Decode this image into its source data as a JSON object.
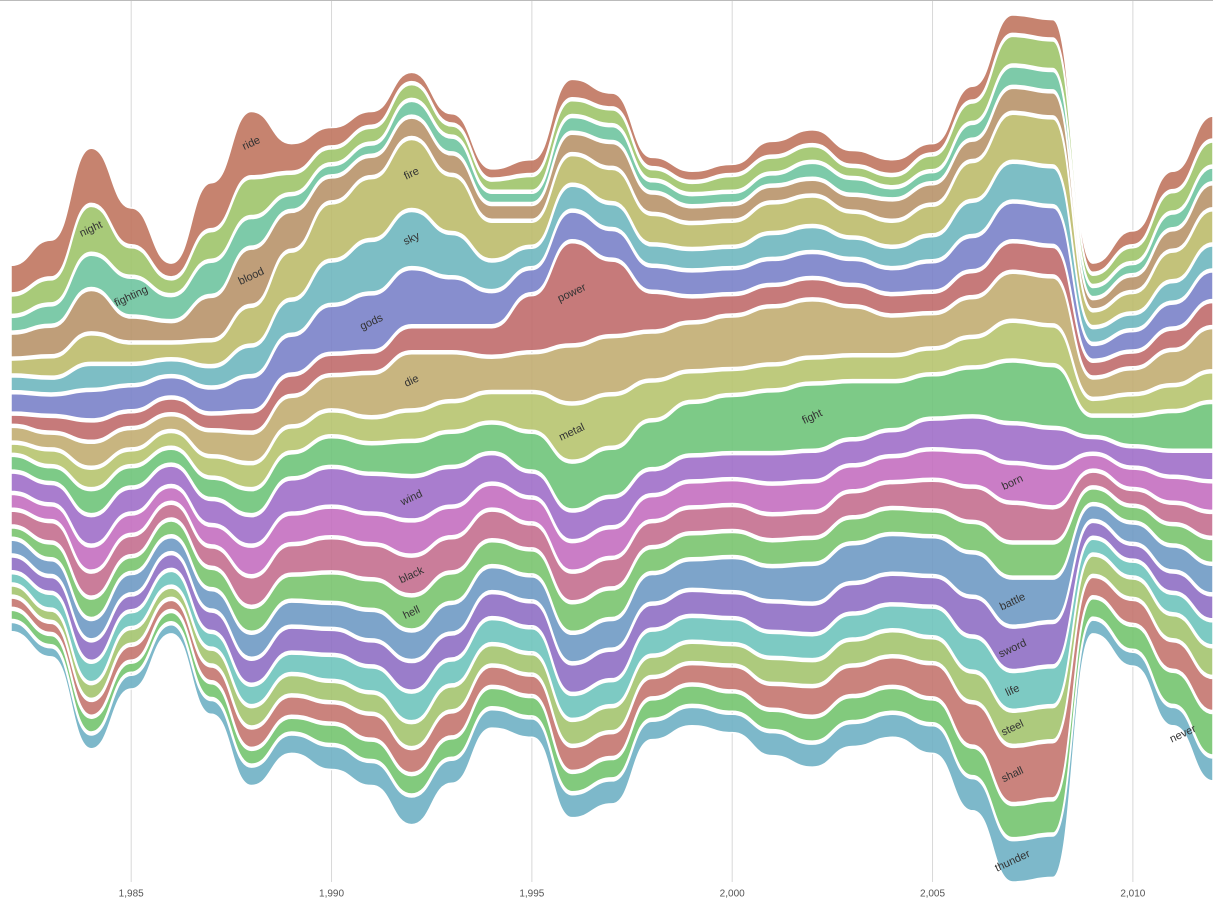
{
  "chart_data": {
    "type": "streamgraph",
    "x": [
      1982,
      1983,
      1984,
      1985,
      1986,
      1987,
      1988,
      1989,
      1990,
      1991,
      1992,
      1993,
      1994,
      1995,
      1996,
      1997,
      1998,
      1999,
      2000,
      2001,
      2002,
      2003,
      2004,
      2005,
      2006,
      2007,
      2008,
      2009,
      2010,
      2011,
      2012
    ],
    "xlim": [
      1982,
      2012
    ],
    "xticks": [
      {
        "value": 1985,
        "label": "1,985"
      },
      {
        "value": 1990,
        "label": "1,990"
      },
      {
        "value": 1995,
        "label": "1,995"
      },
      {
        "value": 2000,
        "label": "2,000"
      },
      {
        "value": 2005,
        "label": "2,005"
      },
      {
        "value": 2010,
        "label": "2,010"
      }
    ],
    "grid": true,
    "series": [
      {
        "name": "ride",
        "color": "#c0765f",
        "values": [
          6,
          8,
          12,
          8,
          3,
          10,
          14,
          6,
          4,
          3,
          2,
          2,
          2,
          3,
          4,
          3,
          2,
          2,
          2,
          3,
          3,
          3,
          3,
          2,
          3,
          4,
          4,
          2,
          3,
          4,
          5
        ]
      },
      {
        "name": "night",
        "color": "#9ec46a",
        "values": [
          4,
          5,
          10,
          6,
          3,
          6,
          8,
          4,
          3,
          3,
          3,
          2,
          2,
          3,
          3,
          3,
          2,
          2,
          3,
          3,
          3,
          2,
          2,
          3,
          4,
          6,
          6,
          2,
          3,
          4,
          5
        ]
      },
      {
        "name": "fighting",
        "color": "#6fc4a0",
        "values": [
          3,
          4,
          7,
          8,
          5,
          7,
          6,
          3,
          2,
          2,
          3,
          3,
          2,
          2,
          3,
          3,
          2,
          2,
          2,
          2,
          3,
          3,
          2,
          2,
          3,
          4,
          4,
          2,
          2,
          3,
          3
        ]
      },
      {
        "name": "blood",
        "color": "#b8936a",
        "values": [
          5,
          6,
          9,
          5,
          4,
          9,
          12,
          8,
          5,
          4,
          4,
          4,
          3,
          3,
          4,
          5,
          4,
          3,
          3,
          3,
          3,
          3,
          4,
          4,
          4,
          5,
          5,
          2,
          3,
          4,
          5
        ]
      },
      {
        "name": "fire",
        "color": "#bdbb6c",
        "values": [
          3,
          4,
          6,
          4,
          3,
          5,
          8,
          10,
          12,
          13,
          15,
          12,
          8,
          5,
          6,
          7,
          6,
          5,
          5,
          6,
          6,
          5,
          5,
          6,
          8,
          10,
          10,
          3,
          4,
          6,
          7
        ]
      },
      {
        "name": "sky",
        "color": "#6fb7bf",
        "values": [
          3,
          3,
          5,
          4,
          3,
          4,
          6,
          7,
          9,
          11,
          12,
          9,
          6,
          4,
          5,
          5,
          4,
          4,
          4,
          5,
          5,
          4,
          4,
          5,
          7,
          8,
          8,
          3,
          3,
          4,
          5
        ]
      },
      {
        "name": "gods",
        "color": "#7a82c9",
        "values": [
          4,
          4,
          6,
          5,
          4,
          5,
          7,
          8,
          10,
          12,
          12,
          10,
          7,
          5,
          6,
          6,
          5,
          5,
          5,
          5,
          5,
          5,
          5,
          6,
          7,
          8,
          8,
          3,
          4,
          5,
          6
        ]
      },
      {
        "name": "power",
        "color": "#c06b6b",
        "values": [
          2,
          3,
          4,
          3,
          3,
          3,
          4,
          4,
          4,
          4,
          5,
          5,
          6,
          12,
          22,
          16,
          8,
          5,
          4,
          4,
          4,
          4,
          4,
          4,
          5,
          6,
          6,
          3,
          3,
          4,
          5
        ]
      },
      {
        "name": "die",
        "color": "#c2ad72",
        "values": [
          3,
          3,
          5,
          4,
          3,
          5,
          6,
          6,
          7,
          9,
          12,
          10,
          7,
          8,
          12,
          12,
          10,
          10,
          11,
          12,
          12,
          10,
          8,
          7,
          8,
          10,
          10,
          4,
          5,
          7,
          9
        ]
      },
      {
        "name": "metal",
        "color": "#b7c46f",
        "values": [
          2,
          3,
          4,
          3,
          3,
          4,
          5,
          5,
          5,
          5,
          6,
          6,
          6,
          8,
          12,
          11,
          8,
          6,
          5,
          5,
          5,
          5,
          5,
          5,
          6,
          8,
          8,
          3,
          4,
          5,
          6
        ]
      },
      {
        "name": "fight",
        "color": "#6fc47a",
        "values": [
          3,
          3,
          5,
          4,
          3,
          4,
          5,
          5,
          6,
          6,
          7,
          7,
          6,
          8,
          10,
          10,
          10,
          11,
          12,
          13,
          14,
          12,
          10,
          9,
          10,
          13,
          13,
          4,
          6,
          8,
          10
        ]
      },
      {
        "name": "wind",
        "color": "#a06fc9",
        "values": [
          4,
          4,
          6,
          5,
          4,
          5,
          6,
          7,
          8,
          8,
          9,
          8,
          6,
          5,
          6,
          6,
          5,
          5,
          5,
          6,
          6,
          5,
          5,
          6,
          7,
          8,
          8,
          3,
          4,
          5,
          6
        ]
      },
      {
        "name": "born",
        "color": "#c46fc0",
        "values": [
          3,
          3,
          5,
          4,
          3,
          4,
          6,
          6,
          6,
          6,
          7,
          6,
          5,
          5,
          6,
          6,
          5,
          5,
          5,
          6,
          6,
          5,
          5,
          6,
          7,
          8,
          8,
          3,
          4,
          5,
          6
        ]
      },
      {
        "name": "black",
        "color": "#c46f8f",
        "values": [
          3,
          4,
          5,
          4,
          3,
          4,
          6,
          6,
          7,
          7,
          8,
          7,
          6,
          5,
          6,
          6,
          5,
          5,
          5,
          5,
          5,
          5,
          5,
          6,
          7,
          8,
          7,
          3,
          3,
          4,
          5
        ]
      },
      {
        "name": "hell",
        "color": "#7ac46f",
        "values": [
          2,
          3,
          4,
          3,
          3,
          4,
          5,
          5,
          6,
          6,
          7,
          6,
          5,
          5,
          6,
          6,
          5,
          5,
          5,
          5,
          5,
          5,
          5,
          5,
          6,
          7,
          7,
          3,
          3,
          4,
          5
        ]
      },
      {
        "name": "battle",
        "color": "#6f9ac4",
        "values": [
          3,
          3,
          4,
          4,
          3,
          4,
          5,
          5,
          5,
          6,
          6,
          6,
          5,
          5,
          6,
          6,
          6,
          6,
          7,
          7,
          8,
          8,
          8,
          8,
          9,
          10,
          9,
          3,
          4,
          5,
          6
        ]
      },
      {
        "name": "sword",
        "color": "#8f6fc4",
        "values": [
          3,
          3,
          4,
          3,
          3,
          4,
          5,
          5,
          5,
          5,
          6,
          5,
          5,
          5,
          6,
          6,
          5,
          5,
          5,
          6,
          6,
          6,
          6,
          6,
          8,
          9,
          9,
          3,
          3,
          4,
          5
        ]
      },
      {
        "name": "life",
        "color": "#6fc4bd",
        "values": [
          2,
          3,
          4,
          3,
          3,
          3,
          4,
          4,
          5,
          5,
          6,
          5,
          5,
          5,
          5,
          5,
          5,
          5,
          5,
          5,
          5,
          5,
          5,
          6,
          7,
          8,
          8,
          3,
          3,
          4,
          5
        ]
      },
      {
        "name": "steel",
        "color": "#a4c46f",
        "values": [
          2,
          2,
          3,
          3,
          2,
          3,
          4,
          4,
          4,
          4,
          5,
          5,
          4,
          4,
          5,
          5,
          4,
          4,
          4,
          5,
          5,
          5,
          5,
          5,
          6,
          7,
          7,
          4,
          4,
          5,
          6
        ]
      },
      {
        "name": "shall",
        "color": "#c4766f",
        "values": [
          2,
          2,
          3,
          3,
          2,
          3,
          4,
          4,
          4,
          5,
          5,
          5,
          4,
          4,
          5,
          5,
          4,
          4,
          5,
          5,
          6,
          6,
          6,
          7,
          9,
          12,
          12,
          4,
          5,
          6,
          7
        ]
      },
      {
        "name": "never",
        "color": "#74c46f",
        "values": [
          2,
          2,
          3,
          2,
          2,
          3,
          3,
          3,
          4,
          4,
          4,
          4,
          4,
          4,
          4,
          4,
          4,
          4,
          4,
          4,
          5,
          5,
          5,
          5,
          6,
          7,
          7,
          4,
          5,
          7,
          9
        ]
      },
      {
        "name": "thunder",
        "color": "#6fb0c4",
        "values": [
          2,
          2,
          3,
          3,
          2,
          3,
          4,
          4,
          5,
          5,
          6,
          5,
          4,
          4,
          5,
          5,
          4,
          4,
          4,
          5,
          5,
          5,
          5,
          6,
          7,
          9,
          9,
          3,
          3,
          4,
          5
        ]
      }
    ]
  }
}
